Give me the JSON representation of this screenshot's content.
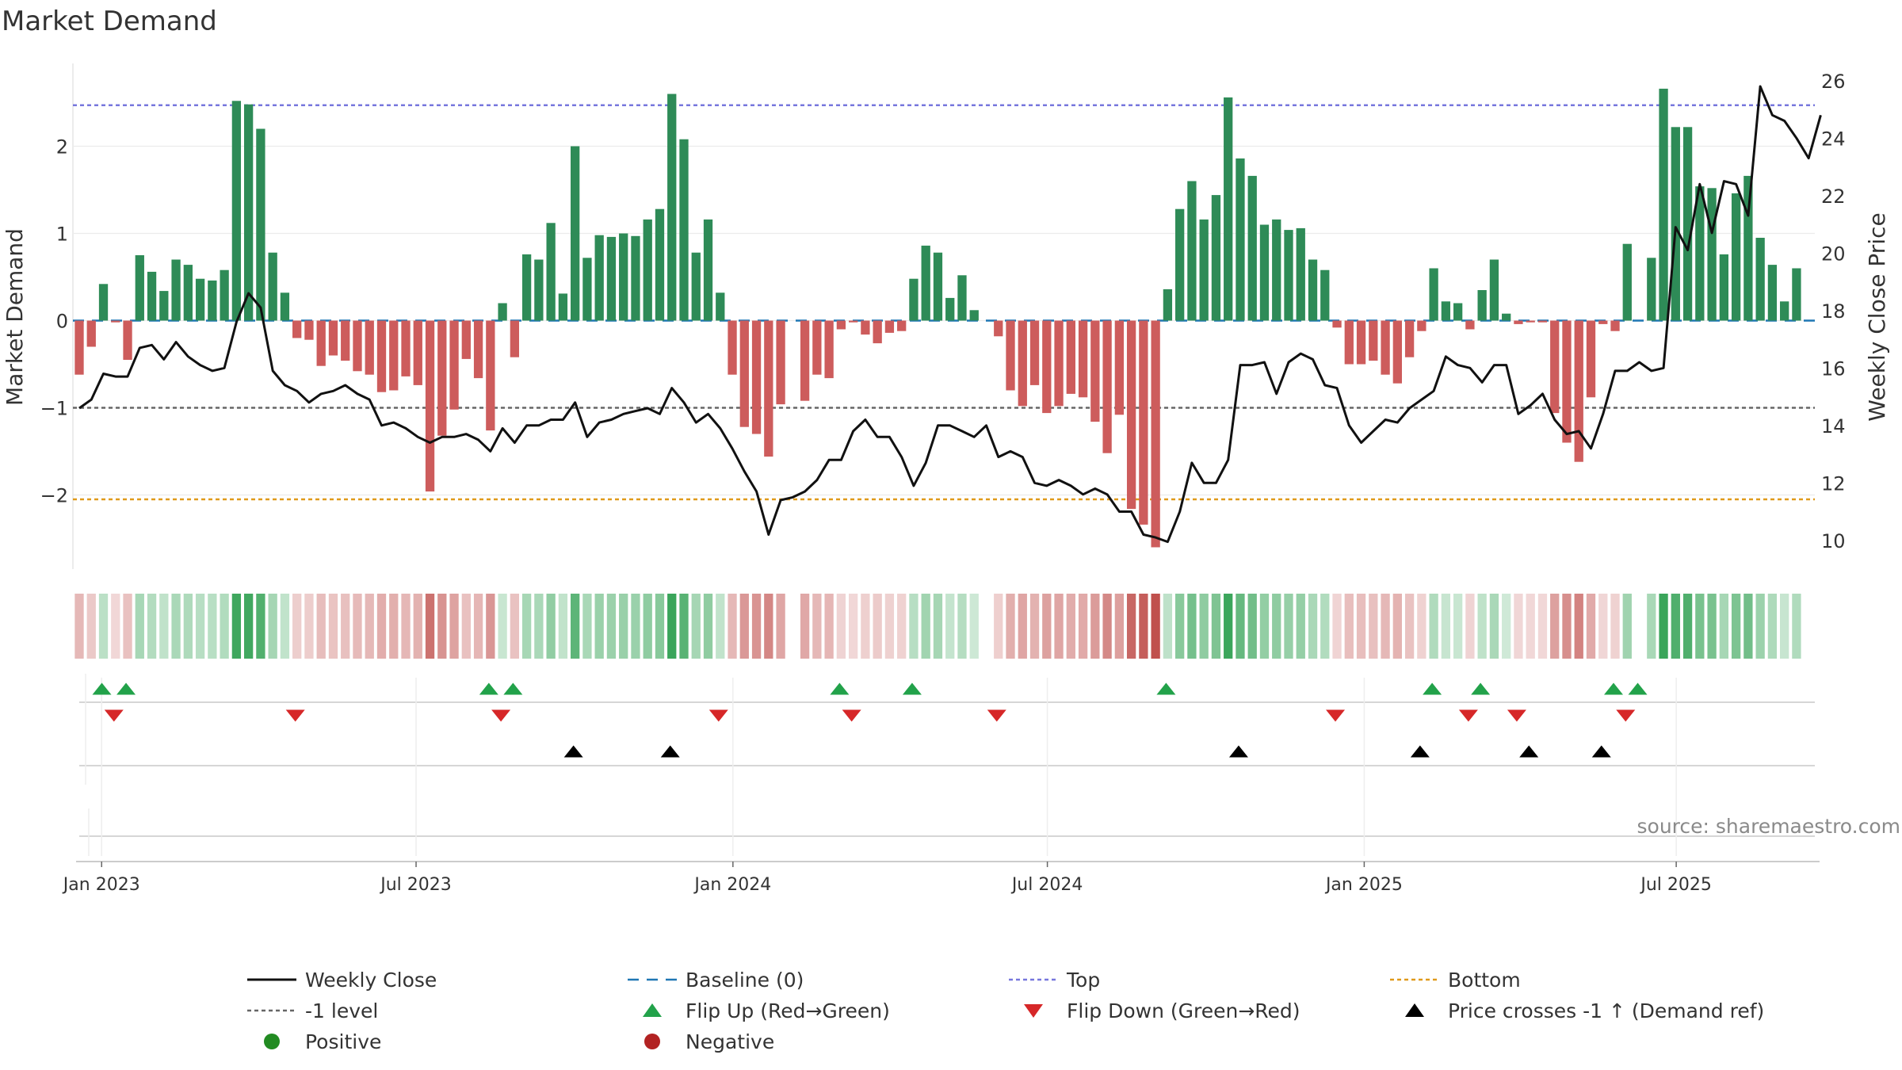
{
  "chart_data": {
    "type": "bar",
    "title": "Market Demand",
    "ylabel_left": "Market Demand",
    "ylabel_right": "Weekly Close Price",
    "source": "source: sharemaestro.com",
    "ylim_left": [
      -2.85,
      2.95
    ],
    "ylim_right": [
      9.0,
      26.6
    ],
    "yticks_left": [
      {
        "v": 2,
        "label": "2"
      },
      {
        "v": 1,
        "label": "1"
      },
      {
        "v": 0,
        "label": "0"
      },
      {
        "v": -1,
        "label": "−1"
      },
      {
        "v": -2,
        "label": "−2"
      }
    ],
    "yticks_right": [
      10,
      12,
      14,
      16,
      18,
      20,
      22,
      24,
      26
    ],
    "x_ticks": [
      {
        "label": "Jan 2023",
        "week": 1
      },
      {
        "label": "Jul 2023",
        "week": 27
      },
      {
        "label": "Jan 2024",
        "week": 53.2
      },
      {
        "label": "Jul 2024",
        "week": 79.2
      },
      {
        "label": "Jan 2025",
        "week": 105.4
      },
      {
        "label": "Jul 2025",
        "week": 131.2
      }
    ],
    "reference_levels": {
      "top": 2.47,
      "minus_one": -1.0,
      "bottom": -2.05,
      "baseline": 0
    },
    "colors": {
      "positive": "#2e8b57",
      "negative": "#cd5c5c",
      "price": "#111111",
      "top": "#7777dd",
      "bottom": "#e09a1a",
      "minus_one": "#666666",
      "baseline": "#1f77b4",
      "flip_up": "#22a24a",
      "flip_down": "#d62728",
      "cross": "#000000",
      "pos_dot": "#228b22",
      "neg_dot": "#b22222"
    },
    "demand": [
      -0.62,
      -0.3,
      0.42,
      -0.02,
      -0.45,
      0.75,
      0.56,
      0.34,
      0.7,
      0.64,
      0.48,
      0.46,
      0.58,
      2.52,
      2.48,
      2.2,
      0.78,
      0.32,
      -0.2,
      -0.22,
      -0.52,
      -0.4,
      -0.46,
      -0.58,
      -0.62,
      -0.82,
      -0.8,
      -0.64,
      -0.74,
      -1.96,
      -1.32,
      -1.02,
      -0.44,
      -0.66,
      -1.26,
      0.2,
      -0.42,
      0.76,
      0.7,
      1.12,
      0.31,
      2.0,
      0.72,
      0.98,
      0.96,
      1.0,
      0.97,
      1.16,
      1.28,
      2.6,
      2.08,
      0.78,
      1.16,
      0.32,
      -0.62,
      -1.22,
      -1.3,
      -1.56,
      -0.96,
      0.0,
      -0.92,
      -0.62,
      -0.66,
      -0.1,
      -0.02,
      -0.16,
      -0.26,
      -0.14,
      -0.12,
      0.48,
      0.86,
      0.78,
      0.26,
      0.52,
      0.12,
      0.0,
      -0.18,
      -0.8,
      -0.98,
      -0.74,
      -1.06,
      -0.98,
      -0.84,
      -0.88,
      -1.16,
      -1.52,
      -1.08,
      -2.16,
      -2.34,
      -2.6,
      0.36,
      1.28,
      1.6,
      1.16,
      1.44,
      2.56,
      1.86,
      1.66,
      1.1,
      1.16,
      1.04,
      1.06,
      0.7,
      0.58,
      -0.08,
      -0.5,
      -0.5,
      -0.46,
      -0.62,
      -0.72,
      -0.42,
      -0.12,
      0.6,
      0.22,
      0.2,
      -0.1,
      0.35,
      0.7,
      0.08,
      -0.04,
      -0.02,
      -0.02,
      -1.06,
      -1.4,
      -1.62,
      -0.88,
      -0.04,
      -0.12,
      0.88,
      0.0,
      0.72,
      2.66,
      2.22,
      2.22,
      1.54,
      1.52,
      0.76,
      1.46,
      1.66,
      0.95,
      0.64,
      0.22,
      0.6
    ],
    "price": [
      14.6,
      14.9,
      15.8,
      15.7,
      15.7,
      16.7,
      16.8,
      16.3,
      16.9,
      16.4,
      16.1,
      15.9,
      16.0,
      17.6,
      18.6,
      18.1,
      15.9,
      15.4,
      15.2,
      14.8,
      15.1,
      15.2,
      15.4,
      15.1,
      14.9,
      14.0,
      14.1,
      13.9,
      13.6,
      13.4,
      13.6,
      13.6,
      13.7,
      13.5,
      13.1,
      13.9,
      13.4,
      14.0,
      14.0,
      14.2,
      14.2,
      14.8,
      13.6,
      14.1,
      14.2,
      14.4,
      14.5,
      14.6,
      14.4,
      15.3,
      14.8,
      14.1,
      14.4,
      13.9,
      13.2,
      12.4,
      11.7,
      10.2,
      11.4,
      11.5,
      11.7,
      12.1,
      12.8,
      12.8,
      13.8,
      14.2,
      13.6,
      13.6,
      12.9,
      11.9,
      12.7,
      14.0,
      14.0,
      13.8,
      13.6,
      14.0,
      12.9,
      13.1,
      12.9,
      12.0,
      11.9,
      12.1,
      11.9,
      11.6,
      11.8,
      11.6,
      11.0,
      11.0,
      10.2,
      10.1,
      9.95,
      11.0,
      12.7,
      12.0,
      12.0,
      12.8,
      16.1,
      16.1,
      16.2,
      15.1,
      16.2,
      16.5,
      16.3,
      15.4,
      15.3,
      14.0,
      13.4,
      13.8,
      14.2,
      14.1,
      14.6,
      14.9,
      15.2,
      16.4,
      16.1,
      16.0,
      15.5,
      16.1,
      16.1,
      14.4,
      14.7,
      15.1,
      14.2,
      13.7,
      13.8,
      13.2,
      14.4,
      15.9,
      15.9,
      16.2,
      15.9,
      16.0,
      20.9,
      20.1,
      22.4,
      20.7,
      22.5,
      22.4,
      21.3,
      25.8,
      24.8,
      24.6,
      24.0,
      23.3,
      24.8
    ],
    "flip_up_weeks": [
      2,
      4,
      34,
      36,
      63,
      69,
      90,
      112,
      116,
      127,
      129
    ],
    "flip_down_weeks": [
      3,
      18,
      35,
      53,
      64,
      76,
      104,
      115,
      119,
      128
    ],
    "cross_weeks": [
      41,
      49,
      96,
      111,
      120,
      126
    ],
    "legend": [
      {
        "key": "weekly_close",
        "label": "Weekly Close"
      },
      {
        "key": "baseline",
        "label": "Baseline (0)"
      },
      {
        "key": "top",
        "label": "Top"
      },
      {
        "key": "bottom",
        "label": "Bottom"
      },
      {
        "key": "minus_one",
        "label": "-1 level"
      },
      {
        "key": "flip_up",
        "label": "Flip Up (Red→Green)"
      },
      {
        "key": "flip_down",
        "label": "Flip Down (Green→Red)"
      },
      {
        "key": "cross",
        "label": "Price crosses -1 ↑ (Demand ref)"
      },
      {
        "key": "positive",
        "label": "Positive"
      },
      {
        "key": "negative",
        "label": "Negative"
      }
    ]
  }
}
